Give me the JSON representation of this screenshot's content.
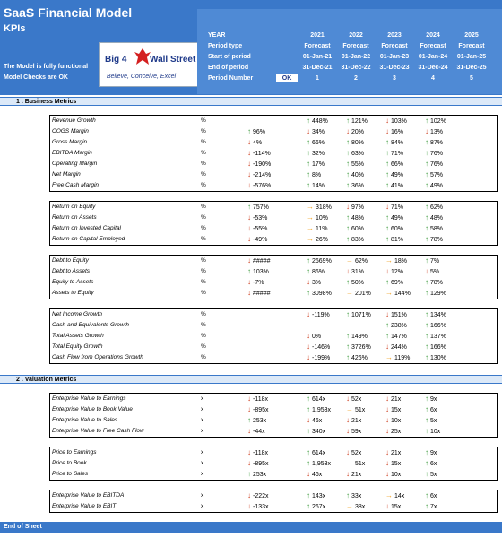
{
  "header": {
    "title": "SaaS Financial Model",
    "subtitle": "KPIs",
    "status_line1": "The Model is fully functional",
    "status_line2": "Model Checks are OK",
    "logo": {
      "left": "Big 4",
      "right": "Wall Street",
      "tagline": "Believe, Conceive, Excel"
    },
    "ok_label": "OK"
  },
  "period_rows": [
    {
      "label": "YEAR",
      "values": [
        "2021",
        "2022",
        "2023",
        "2024",
        "2025"
      ]
    },
    {
      "label": "Period type",
      "values": [
        "Forecast",
        "Forecast",
        "Forecast",
        "Forecast",
        "Forecast"
      ]
    },
    {
      "label": "Start of period",
      "values": [
        "01-Jan-21",
        "01-Jan-22",
        "01-Jan-23",
        "01-Jan-24",
        "01-Jan-25"
      ]
    },
    {
      "label": "End of period",
      "values": [
        "31-Dec-21",
        "31-Dec-22",
        "31-Dec-23",
        "31-Dec-24",
        "31-Dec-25"
      ]
    },
    {
      "label": "Period Number",
      "values": [
        "1",
        "2",
        "3",
        "4",
        "5"
      ]
    }
  ],
  "sections": [
    {
      "title": "1 . Business Metrics"
    },
    {
      "title": "2 . Valuation Metrics"
    }
  ],
  "groups": [
    {
      "rows": [
        {
          "label": "Revenue Growth",
          "unit": "%",
          "cells": [
            [
              "",
              ""
            ],
            [
              "u",
              "448%"
            ],
            [
              "u",
              "121%"
            ],
            [
              "d",
              "103%"
            ],
            [
              "u",
              "102%"
            ]
          ]
        },
        {
          "label": "COGS Margin",
          "unit": "%",
          "cells": [
            [
              "u",
              "96%"
            ],
            [
              "d",
              "34%"
            ],
            [
              "d",
              "20%"
            ],
            [
              "d",
              "16%"
            ],
            [
              "d",
              "13%"
            ]
          ]
        },
        {
          "label": "Gross Margin",
          "unit": "%",
          "cells": [
            [
              "d",
              "4%"
            ],
            [
              "u",
              "66%"
            ],
            [
              "u",
              "80%"
            ],
            [
              "u",
              "84%"
            ],
            [
              "u",
              "87%"
            ]
          ]
        },
        {
          "label": "EBITDA Margin",
          "unit": "%",
          "cells": [
            [
              "d",
              "-114%"
            ],
            [
              "u",
              "32%"
            ],
            [
              "u",
              "63%"
            ],
            [
              "u",
              "71%"
            ],
            [
              "u",
              "76%"
            ]
          ]
        },
        {
          "label": "Operating Margin",
          "unit": "%",
          "cells": [
            [
              "d",
              "-190%"
            ],
            [
              "u",
              "17%"
            ],
            [
              "u",
              "55%"
            ],
            [
              "u",
              "66%"
            ],
            [
              "u",
              "76%"
            ]
          ]
        },
        {
          "label": "Net Margin",
          "unit": "%",
          "cells": [
            [
              "d",
              "-214%"
            ],
            [
              "u",
              "8%"
            ],
            [
              "u",
              "40%"
            ],
            [
              "u",
              "49%"
            ],
            [
              "u",
              "57%"
            ]
          ]
        },
        {
          "label": "Free Cash Margin",
          "unit": "%",
          "cells": [
            [
              "d",
              "-576%"
            ],
            [
              "u",
              "14%"
            ],
            [
              "u",
              "36%"
            ],
            [
              "u",
              "41%"
            ],
            [
              "u",
              "49%"
            ]
          ]
        }
      ]
    },
    {
      "rows": [
        {
          "label": "Return on Equity",
          "unit": "%",
          "cells": [
            [
              "u",
              "757%"
            ],
            [
              "f",
              "318%"
            ],
            [
              "d",
              "97%"
            ],
            [
              "d",
              "71%"
            ],
            [
              "u",
              "62%"
            ]
          ]
        },
        {
          "label": "Return on Assets",
          "unit": "%",
          "cells": [
            [
              "d",
              "-53%"
            ],
            [
              "f",
              "10%"
            ],
            [
              "u",
              "48%"
            ],
            [
              "u",
              "49%"
            ],
            [
              "u",
              "48%"
            ]
          ]
        },
        {
          "label": "Return on Invested Capital",
          "unit": "%",
          "cells": [
            [
              "d",
              "-55%"
            ],
            [
              "f",
              "11%"
            ],
            [
              "u",
              "60%"
            ],
            [
              "u",
              "60%"
            ],
            [
              "u",
              "58%"
            ]
          ]
        },
        {
          "label": "Return on Capital Employed",
          "unit": "%",
          "cells": [
            [
              "d",
              "-49%"
            ],
            [
              "f",
              "26%"
            ],
            [
              "u",
              "83%"
            ],
            [
              "u",
              "81%"
            ],
            [
              "u",
              "78%"
            ]
          ]
        }
      ]
    },
    {
      "rows": [
        {
          "label": "Debt to Equity",
          "unit": "%",
          "cells": [
            [
              "d",
              "#####"
            ],
            [
              "u",
              "2669%"
            ],
            [
              "f",
              "62%"
            ],
            [
              "f",
              "18%"
            ],
            [
              "u",
              "7%"
            ]
          ]
        },
        {
          "label": "Debt to Assets",
          "unit": "%",
          "cells": [
            [
              "u",
              "103%"
            ],
            [
              "u",
              "86%"
            ],
            [
              "d",
              "31%"
            ],
            [
              "d",
              "12%"
            ],
            [
              "d",
              "5%"
            ]
          ]
        },
        {
          "label": "Equity to Assets",
          "unit": "%",
          "cells": [
            [
              "d",
              "-7%"
            ],
            [
              "d",
              "3%"
            ],
            [
              "u",
              "50%"
            ],
            [
              "u",
              "69%"
            ],
            [
              "u",
              "78%"
            ]
          ]
        },
        {
          "label": "Assets to Equity",
          "unit": "%",
          "cells": [
            [
              "d",
              "#####"
            ],
            [
              "u",
              "3098%"
            ],
            [
              "f",
              "201%"
            ],
            [
              "f",
              "144%"
            ],
            [
              "u",
              "129%"
            ]
          ]
        }
      ]
    },
    {
      "rows": [
        {
          "label": "Net Income Growth",
          "unit": "%",
          "cells": [
            [
              "",
              ""
            ],
            [
              "d",
              "-119%"
            ],
            [
              "u",
              "1071%"
            ],
            [
              "d",
              "151%"
            ],
            [
              "u",
              "134%"
            ]
          ]
        },
        {
          "label": "Cash and Equivalents Growth",
          "unit": "%",
          "cells": [
            [
              "",
              ""
            ],
            [
              "",
              ""
            ],
            [
              "",
              ""
            ],
            [
              "u",
              "238%"
            ],
            [
              "u",
              "166%"
            ]
          ]
        },
        {
          "label": "Total Assets Growth",
          "unit": "%",
          "cells": [
            [
              "",
              ""
            ],
            [
              "d",
              "0%"
            ],
            [
              "u",
              "149%"
            ],
            [
              "u",
              "147%"
            ],
            [
              "u",
              "137%"
            ]
          ]
        },
        {
          "label": "Total Equity Growth",
          "unit": "%",
          "cells": [
            [
              "",
              ""
            ],
            [
              "d",
              "-146%"
            ],
            [
              "u",
              "3726%"
            ],
            [
              "d",
              "244%"
            ],
            [
              "u",
              "166%"
            ]
          ]
        },
        {
          "label": "Cash Flow from Operations Growth",
          "unit": "%",
          "cells": [
            [
              "",
              ""
            ],
            [
              "d",
              "-199%"
            ],
            [
              "u",
              "426%"
            ],
            [
              "f",
              "119%"
            ],
            [
              "u",
              "130%"
            ]
          ]
        }
      ]
    },
    {
      "rows": [
        {
          "label": "Enterprise Value to Earnings",
          "unit": "x",
          "cells": [
            [
              "d",
              "-118x"
            ],
            [
              "u",
              "614x"
            ],
            [
              "d",
              "52x"
            ],
            [
              "d",
              "21x"
            ],
            [
              "u",
              "9x"
            ]
          ]
        },
        {
          "label": "Enterprise Value to Book Value",
          "unit": "x",
          "cells": [
            [
              "d",
              "-895x"
            ],
            [
              "u",
              "1,953x"
            ],
            [
              "f",
              "51x"
            ],
            [
              "d",
              "15x"
            ],
            [
              "u",
              "6x"
            ]
          ]
        },
        {
          "label": "Enterprise Value to Sales",
          "unit": "x",
          "cells": [
            [
              "u",
              "253x"
            ],
            [
              "d",
              "46x"
            ],
            [
              "d",
              "21x"
            ],
            [
              "d",
              "10x"
            ],
            [
              "u",
              "5x"
            ]
          ]
        },
        {
          "label": "Enterprise Value to Free Cash Flow",
          "unit": "x",
          "cells": [
            [
              "d",
              "-44x"
            ],
            [
              "u",
              "340x"
            ],
            [
              "d",
              "59x"
            ],
            [
              "d",
              "25x"
            ],
            [
              "u",
              "10x"
            ]
          ]
        }
      ]
    },
    {
      "rows": [
        {
          "label": "Price to Earnings",
          "unit": "x",
          "cells": [
            [
              "d",
              "-118x"
            ],
            [
              "u",
              "614x"
            ],
            [
              "d",
              "52x"
            ],
            [
              "d",
              "21x"
            ],
            [
              "u",
              "9x"
            ]
          ]
        },
        {
          "label": "Price to Book",
          "unit": "x",
          "cells": [
            [
              "d",
              "-895x"
            ],
            [
              "u",
              "1,953x"
            ],
            [
              "f",
              "51x"
            ],
            [
              "d",
              "15x"
            ],
            [
              "u",
              "6x"
            ]
          ]
        },
        {
          "label": "Price to Sales",
          "unit": "x",
          "cells": [
            [
              "u",
              "253x"
            ],
            [
              "d",
              "46x"
            ],
            [
              "d",
              "21x"
            ],
            [
              "d",
              "10x"
            ],
            [
              "u",
              "5x"
            ]
          ]
        }
      ]
    },
    {
      "rows": [
        {
          "label": "Enterprise Value to EBITDA",
          "unit": "x",
          "cells": [
            [
              "d",
              "-222x"
            ],
            [
              "u",
              "143x"
            ],
            [
              "u",
              "33x"
            ],
            [
              "f",
              "14x"
            ],
            [
              "u",
              "6x"
            ]
          ]
        },
        {
          "label": "Enterprise Value to EBIT",
          "unit": "x",
          "cells": [
            [
              "d",
              "-133x"
            ],
            [
              "u",
              "267x"
            ],
            [
              "f",
              "38x"
            ],
            [
              "d",
              "15x"
            ],
            [
              "u",
              "7x"
            ]
          ]
        }
      ]
    }
  ],
  "icons": {
    "u": "arrow-up-icon",
    "d": "arrow-down-icon",
    "f": "arrow-right-icon"
  },
  "colors": {
    "header": "#3a78c9",
    "section": "#dce9f8",
    "up": "#3d9a3d",
    "down": "#cc3a1a",
    "flat": "#f0a020"
  },
  "footer": "End of Sheet"
}
